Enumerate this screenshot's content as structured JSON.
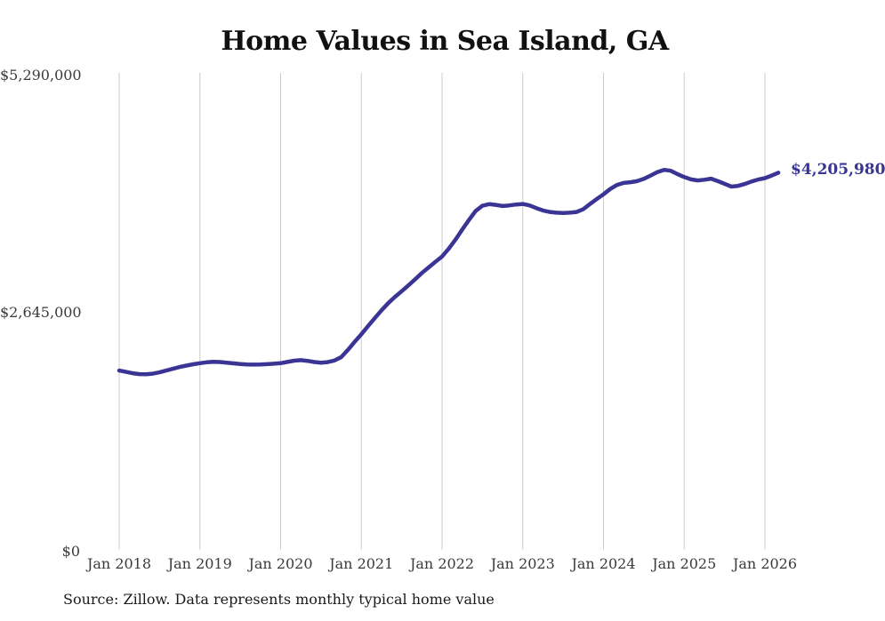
{
  "title": "Home Values in Sea Island, GA",
  "source_note": "Source: Zillow. Data represents monthly typical home value",
  "annotation": {
    "end_value_label": "$4,205,980"
  },
  "colors": {
    "line": "#3a3494",
    "grid": "#cccccc",
    "tick_label": "#3a3a3a",
    "title": "#111111",
    "annotation": "#3a3494",
    "background": "#ffffff"
  },
  "y_axis": {
    "ticks": [
      {
        "label": "$5,290,000",
        "value": 5290000
      },
      {
        "label": "$2,645,000",
        "value": 2645000
      },
      {
        "label": "$0",
        "value": 0
      }
    ]
  },
  "x_axis": {
    "ticks": [
      {
        "label": "Jan 2018",
        "month": "2018-01"
      },
      {
        "label": "Jan 2019",
        "month": "2019-01"
      },
      {
        "label": "Jan 2020",
        "month": "2020-01"
      },
      {
        "label": "Jan 2021",
        "month": "2021-01"
      },
      {
        "label": "Jan 2022",
        "month": "2022-01"
      },
      {
        "label": "Jan 2023",
        "month": "2023-01"
      },
      {
        "label": "Jan 2024",
        "month": "2024-01"
      },
      {
        "label": "Jan 2025",
        "month": "2025-01"
      },
      {
        "label": "Jan 2026",
        "month": "2026-01"
      }
    ]
  },
  "chart_data": {
    "type": "line",
    "title": "Home Values in Sea Island, GA",
    "xlabel": "",
    "ylabel": "",
    "ylim": [
      0,
      5290000
    ],
    "grid": "vertical-only",
    "legend": "none",
    "end_point_label": "$4,205,980",
    "series": [
      {
        "name": "Monthly typical home value",
        "start": "2018-01",
        "frequency": "monthly",
        "months": [
          "2018-01",
          "2018-02",
          "2018-03",
          "2018-04",
          "2018-05",
          "2018-06",
          "2018-07",
          "2018-08",
          "2018-09",
          "2018-10",
          "2018-11",
          "2018-12",
          "2019-01",
          "2019-02",
          "2019-03",
          "2019-04",
          "2019-05",
          "2019-06",
          "2019-07",
          "2019-08",
          "2019-09",
          "2019-10",
          "2019-11",
          "2019-12",
          "2020-01",
          "2020-02",
          "2020-03",
          "2020-04",
          "2020-05",
          "2020-06",
          "2020-07",
          "2020-08",
          "2020-09",
          "2020-10",
          "2020-11",
          "2020-12",
          "2021-01",
          "2021-02",
          "2021-03",
          "2021-04",
          "2021-05",
          "2021-06",
          "2021-07",
          "2021-08",
          "2021-09",
          "2021-10",
          "2021-11",
          "2021-12",
          "2022-01",
          "2022-02",
          "2022-03",
          "2022-04",
          "2022-05",
          "2022-06",
          "2022-07",
          "2022-08",
          "2022-09",
          "2022-10",
          "2022-11",
          "2022-12",
          "2023-01",
          "2023-02",
          "2023-03",
          "2023-04",
          "2023-05",
          "2023-06",
          "2023-07",
          "2023-08",
          "2023-09",
          "2023-10",
          "2023-11",
          "2023-12",
          "2024-01",
          "2024-02",
          "2024-03",
          "2024-04",
          "2024-05",
          "2024-06",
          "2024-07",
          "2024-08",
          "2024-09",
          "2024-10",
          "2024-11",
          "2024-12",
          "2025-01",
          "2025-02",
          "2025-03",
          "2025-04",
          "2025-05",
          "2025-06",
          "2025-07",
          "2025-08",
          "2025-09",
          "2025-10",
          "2025-11",
          "2025-12",
          "2026-01",
          "2026-02",
          "2026-03"
        ],
        "values": [
          2000000,
          1985000,
          1970000,
          1960000,
          1958000,
          1965000,
          1980000,
          2000000,
          2020000,
          2040000,
          2056000,
          2070000,
          2082000,
          2092000,
          2098000,
          2095000,
          2088000,
          2080000,
          2073000,
          2068000,
          2066000,
          2067000,
          2071000,
          2076000,
          2082000,
          2096000,
          2110000,
          2116000,
          2108000,
          2095000,
          2087000,
          2094000,
          2112000,
          2150000,
          2230000,
          2320000,
          2405000,
          2495000,
          2585000,
          2672000,
          2752000,
          2822000,
          2885000,
          2950000,
          3018000,
          3088000,
          3150000,
          3212000,
          3272000,
          3360000,
          3460000,
          3572000,
          3680000,
          3780000,
          3838000,
          3856000,
          3848000,
          3835000,
          3842000,
          3852000,
          3858000,
          3842000,
          3812000,
          3785000,
          3768000,
          3760000,
          3757000,
          3760000,
          3768000,
          3800000,
          3858000,
          3912000,
          3966000,
          4025000,
          4070000,
          4092000,
          4100000,
          4112000,
          4138000,
          4175000,
          4212000,
          4238000,
          4228000,
          4190000,
          4158000,
          4132000,
          4120000,
          4128000,
          4140000,
          4112000,
          4082000,
          4052000,
          4060000,
          4080000,
          4108000,
          4130000,
          4146000,
          4175000,
          4205980
        ]
      }
    ]
  }
}
